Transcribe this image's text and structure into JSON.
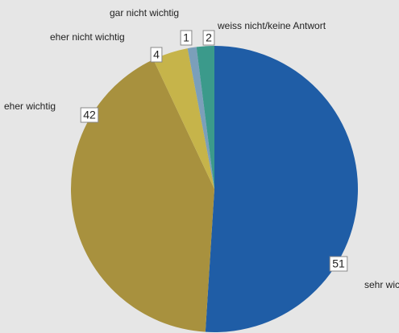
{
  "chart_data": {
    "type": "pie",
    "categories": [
      "sehr wichtig",
      "eher wichtig",
      "eher nicht wichtig",
      "gar nicht wichtig",
      "weiss nicht/keine Antwort"
    ],
    "values": [
      51,
      42,
      4,
      1,
      2
    ],
    "colors": [
      "#1f5da6",
      "#a8913e",
      "#c6b44a",
      "#7b9fba",
      "#3b9a8b"
    ]
  }
}
